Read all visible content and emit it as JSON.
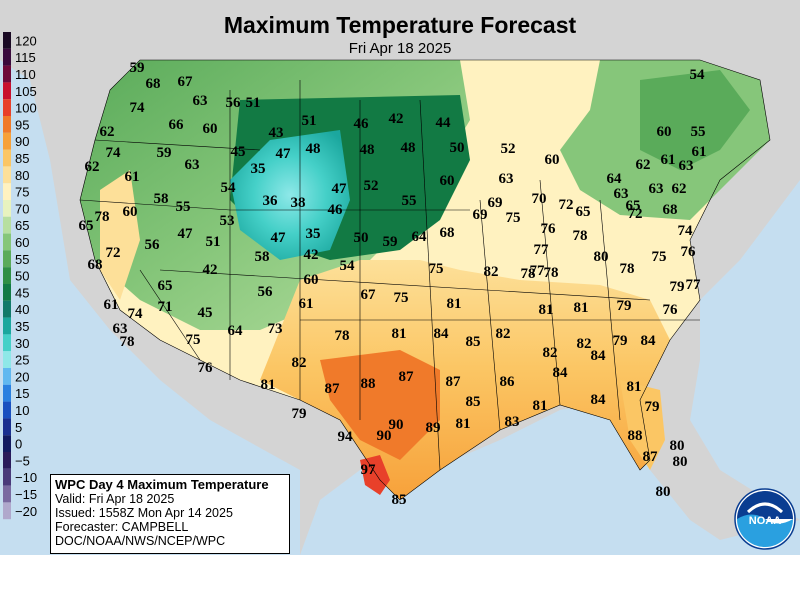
{
  "title": "Maximum Temperature Forecast",
  "subtitle": "Fri Apr 18 2025",
  "legend": [
    {
      "label": "120",
      "color": "#1a0a24"
    },
    {
      "label": "115",
      "color": "#3a0a3c"
    },
    {
      "label": "110",
      "color": "#6e0a3a"
    },
    {
      "label": "105",
      "color": "#c8102e"
    },
    {
      "label": "100",
      "color": "#e8402a"
    },
    {
      "label": "95",
      "color": "#f07a2a"
    },
    {
      "label": "90",
      "color": "#f7a13a"
    },
    {
      "label": "85",
      "color": "#fbc664"
    },
    {
      "label": "80",
      "color": "#fde099"
    },
    {
      "label": "75",
      "color": "#fff2c0"
    },
    {
      "label": "70",
      "color": "#e8f3bf"
    },
    {
      "label": "65",
      "color": "#b7dfa1"
    },
    {
      "label": "60",
      "color": "#86c67a"
    },
    {
      "label": "55",
      "color": "#5aab5a"
    },
    {
      "label": "50",
      "color": "#2f8f44"
    },
    {
      "label": "45",
      "color": "#127a44"
    },
    {
      "label": "40",
      "color": "#127a6a"
    },
    {
      "label": "35",
      "color": "#1ba79e"
    },
    {
      "label": "30",
      "color": "#45d0c8"
    },
    {
      "label": "25",
      "color": "#8ee8e8"
    },
    {
      "label": "20",
      "color": "#60b8f0"
    },
    {
      "label": "15",
      "color": "#2a80e0"
    },
    {
      "label": "10",
      "color": "#1a50c0"
    },
    {
      "label": "5",
      "color": "#1a2f90"
    },
    {
      "label": "0",
      "color": "#121a60"
    },
    {
      "label": "−5",
      "color": "#2a1a5a"
    },
    {
      "label": "−10",
      "color": "#4a3a7a"
    },
    {
      "label": "−15",
      "color": "#7a6aa0"
    },
    {
      "label": "−20",
      "color": "#b0a8cc"
    }
  ],
  "temperatures": [
    {
      "v": "59"
    },
    {
      "v": "68"
    },
    {
      "v": "67"
    },
    {
      "v": "63"
    },
    {
      "v": "56"
    },
    {
      "v": "51"
    },
    {
      "v": "74"
    },
    {
      "v": "66"
    },
    {
      "v": "60"
    },
    {
      "v": "43"
    },
    {
      "v": "51"
    },
    {
      "v": "46"
    },
    {
      "v": "42"
    },
    {
      "v": "44"
    },
    {
      "v": "54"
    },
    {
      "v": "62"
    },
    {
      "v": "74"
    },
    {
      "v": "59"
    },
    {
      "v": "45"
    },
    {
      "v": "47"
    },
    {
      "v": "48"
    },
    {
      "v": "48"
    },
    {
      "v": "48"
    },
    {
      "v": "50"
    },
    {
      "v": "52"
    },
    {
      "v": "60"
    },
    {
      "v": "60"
    },
    {
      "v": "55"
    },
    {
      "v": "62"
    },
    {
      "v": "61"
    },
    {
      "v": "63"
    },
    {
      "v": "35"
    },
    {
      "v": "54"
    },
    {
      "v": "47"
    },
    {
      "v": "52"
    },
    {
      "v": "55"
    },
    {
      "v": "60"
    },
    {
      "v": "63"
    },
    {
      "v": "64"
    },
    {
      "v": "62"
    },
    {
      "v": "61"
    },
    {
      "v": "61"
    },
    {
      "v": "63"
    },
    {
      "v": "78"
    },
    {
      "v": "60"
    },
    {
      "v": "58"
    },
    {
      "v": "55"
    },
    {
      "v": "36"
    },
    {
      "v": "38"
    },
    {
      "v": "46"
    },
    {
      "v": "69"
    },
    {
      "v": "70"
    },
    {
      "v": "72"
    },
    {
      "v": "65"
    },
    {
      "v": "63"
    },
    {
      "v": "63"
    },
    {
      "v": "62"
    },
    {
      "v": "65"
    },
    {
      "v": "53"
    },
    {
      "v": "69"
    },
    {
      "v": "75"
    },
    {
      "v": "76"
    },
    {
      "v": "72"
    },
    {
      "v": "65"
    },
    {
      "v": "68"
    },
    {
      "v": "47"
    },
    {
      "v": "56"
    },
    {
      "v": "51"
    },
    {
      "v": "47"
    },
    {
      "v": "35"
    },
    {
      "v": "50"
    },
    {
      "v": "59"
    },
    {
      "v": "64"
    },
    {
      "v": "68"
    },
    {
      "v": "78"
    },
    {
      "v": "77"
    },
    {
      "v": "74"
    },
    {
      "v": "72"
    },
    {
      "v": "58"
    },
    {
      "v": "42"
    },
    {
      "v": "77"
    },
    {
      "v": "80"
    },
    {
      "v": "76"
    },
    {
      "v": "75"
    },
    {
      "v": "68"
    },
    {
      "v": "42"
    },
    {
      "v": "54"
    },
    {
      "v": "75"
    },
    {
      "v": "82"
    },
    {
      "v": "78"
    },
    {
      "v": "78"
    },
    {
      "v": "78"
    },
    {
      "v": "60"
    },
    {
      "v": "56"
    },
    {
      "v": "67"
    },
    {
      "v": "75"
    },
    {
      "v": "79"
    },
    {
      "v": "77"
    },
    {
      "v": "61"
    },
    {
      "v": "65"
    },
    {
      "v": "74"
    },
    {
      "v": "71"
    },
    {
      "v": "45"
    },
    {
      "v": "61"
    },
    {
      "v": "81"
    },
    {
      "v": "81"
    },
    {
      "v": "81"
    },
    {
      "v": "79"
    },
    {
      "v": "76"
    },
    {
      "v": "63"
    },
    {
      "v": "64"
    },
    {
      "v": "73"
    },
    {
      "v": "78"
    },
    {
      "v": "81"
    },
    {
      "v": "84"
    },
    {
      "v": "85"
    },
    {
      "v": "82"
    },
    {
      "v": "82"
    },
    {
      "v": "84"
    },
    {
      "v": "79"
    },
    {
      "v": "78"
    },
    {
      "v": "75"
    },
    {
      "v": "82"
    },
    {
      "v": "82"
    },
    {
      "v": "84"
    },
    {
      "v": "76"
    },
    {
      "v": "87"
    },
    {
      "v": "88"
    },
    {
      "v": "87"
    },
    {
      "v": "87"
    },
    {
      "v": "86"
    },
    {
      "v": "84"
    },
    {
      "v": "81"
    },
    {
      "v": "85"
    },
    {
      "v": "81"
    },
    {
      "v": "84"
    },
    {
      "v": "81"
    },
    {
      "v": "79"
    },
    {
      "v": "90"
    },
    {
      "v": "89"
    },
    {
      "v": "81"
    },
    {
      "v": "83"
    },
    {
      "v": "79"
    },
    {
      "v": "94"
    },
    {
      "v": "90"
    },
    {
      "v": "88"
    },
    {
      "v": "80"
    },
    {
      "v": "87"
    },
    {
      "v": "80"
    },
    {
      "v": "97"
    },
    {
      "v": "80"
    },
    {
      "v": "85"
    }
  ],
  "info_box": {
    "heading": "WPC Day 4 Maximum Temperature",
    "valid": "Valid: Fri Apr 18 2025",
    "issued": "Issued: 1558Z Mon Apr 14 2025",
    "forecaster": "Forecaster: CAMPBELL",
    "agency": "DOC/NOAA/NWS/NCEP/WPC"
  },
  "logo": {
    "text": "NOAA"
  }
}
